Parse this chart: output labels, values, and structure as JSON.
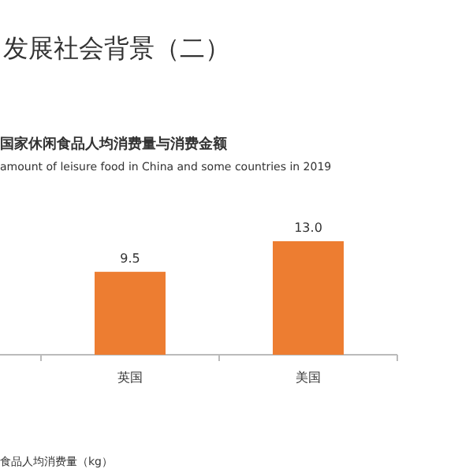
{
  "chart_data": {
    "type": "bar",
    "title": "发展社会背景（二）",
    "subtitle": "国家休闲食品人均消费量与消费金额",
    "annotations": [
      "amount of leisure food in China and some countries in 2019",
      "食品人均消费量（kg）"
    ],
    "categories": [
      "英国",
      "美国"
    ],
    "values": [
      9.5,
      13.0
    ],
    "value_labels": [
      "9.5",
      "13.0"
    ],
    "color": "#ed7d31"
  }
}
